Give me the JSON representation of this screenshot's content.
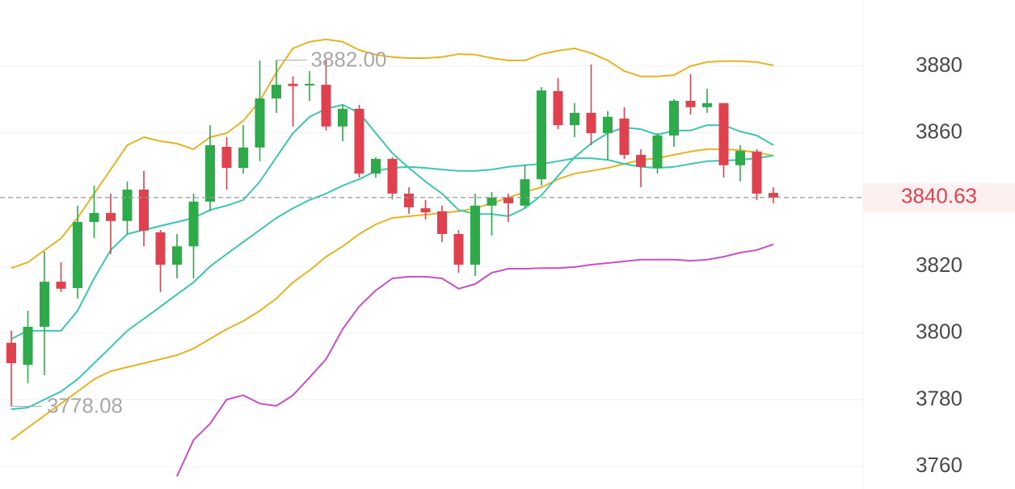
{
  "chart_data": {
    "type": "candlestick",
    "up_color": "#2eaa4a",
    "down_color": "#e0414f",
    "ylim": [
      3753.3,
      3899.8
    ],
    "yticks": [
      3760,
      3780,
      3800,
      3820,
      3860,
      3880
    ],
    "grid": true,
    "open": [
      3797.1,
      3790.5,
      3801.9,
      3815.4,
      3813.5,
      3833.3,
      3836,
      3833.6,
      3843,
      3830.2,
      3820.5,
      3826,
      3839.4,
      3855.8,
      3849.5,
      3855.6,
      3870.3,
      3874.7,
      3874.2,
      3874.4,
      3861.9,
      3867.2,
      3847.8,
      3852.2,
      3841.8,
      3837.4,
      3836.5,
      3829.7,
      3820.5,
      3838.2,
      3840.6,
      3838.2,
      3846.1,
      3872.5,
      3862.3,
      3866,
      3859.9,
      3864.3,
      3853.4,
      3849.5,
      3859.2,
      3869.6,
      3867.7,
      3868.9,
      3850.3,
      3854.4,
      3842
    ],
    "high": [
      3800.7,
      3806.7,
      3824.4,
      3821.2,
      3838.2,
      3844.2,
      3841.8,
      3845.4,
      3848.6,
      3830.9,
      3829.7,
      3841.8,
      3862.3,
      3858.7,
      3862.3,
      3881.7,
      3881.7,
      3876.9,
      3878.5,
      3882,
      3868.4,
      3868.4,
      3852.7,
      3852.7,
      3843.7,
      3839.9,
      3838.2,
      3830.9,
      3841.8,
      3842.3,
      3841.8,
      3850.3,
      3873.7,
      3876.4,
      3868.9,
      3880.5,
      3866.5,
      3867.7,
      3855.1,
      3859.9,
      3870.1,
      3877.6,
      3873.2,
      3868.9,
      3856.3,
      3855.1,
      3843.7
    ],
    "low": [
      3778.08,
      3785,
      3787.4,
      3812.3,
      3810.4,
      3828.5,
      3823.7,
      3829.7,
      3826,
      3812.3,
      3816.4,
      3816.4,
      3836.5,
      3843,
      3847.8,
      3851.5,
      3866,
      3861.9,
      3869.6,
      3860.7,
      3857.5,
      3846.6,
      3846.6,
      3840.1,
      3835.7,
      3834,
      3827.3,
      3818.1,
      3817.1,
      3829.2,
      3833.3,
      3837.4,
      3844.2,
      3861.1,
      3858.7,
      3856.3,
      3851.9,
      3852.2,
      3843.7,
      3847.8,
      3855.8,
      3865.5,
      3866,
      3846.6,
      3845.4,
      3839.9,
      3838.9
    ],
    "close": [
      3791,
      3801.9,
      3815.4,
      3813.3,
      3833.3,
      3836,
      3833.6,
      3843,
      3830.7,
      3820.5,
      3826,
      3839.4,
      3856.3,
      3849.5,
      3855.6,
      3870.3,
      3874.4,
      3874,
      3874.7,
      3861.9,
      3867.2,
      3847.8,
      3852.2,
      3841.8,
      3837.7,
      3836.2,
      3829.7,
      3820.5,
      3838.2,
      3840.6,
      3838.9,
      3846.1,
      3872.7,
      3862.3,
      3866,
      3859.9,
      3864.8,
      3853.4,
      3849.8,
      3859.2,
      3869.6,
      3867.7,
      3868.9,
      3850.3,
      3854.6,
      3841.8,
      3840.63
    ],
    "series": [
      {
        "color": "#e6b422",
        "values": [
          3819.5,
          3821.2,
          3824.8,
          3828.4,
          3834.5,
          3841.8,
          3849,
          3856.3,
          3858.7,
          3857.5,
          3856.8,
          3855.1,
          3858.7,
          3859.9,
          3863.6,
          3869.6,
          3878.1,
          3885.3,
          3887.3,
          3888,
          3887.3,
          3884.8,
          3883.4,
          3882.7,
          3882.4,
          3882.4,
          3882.7,
          3883.6,
          3883.4,
          3882.4,
          3881.7,
          3881.7,
          3883.6,
          3884.6,
          3885.3,
          3883.9,
          3881.7,
          3878.5,
          3876.9,
          3876.9,
          3877.3,
          3880,
          3881.2,
          3881.5,
          3881.5,
          3881.2,
          3880.2
        ]
      },
      {
        "color": "#e6b422",
        "values": [
          3768,
          3771.7,
          3775.3,
          3778.9,
          3782.5,
          3786.2,
          3788.6,
          3789.8,
          3791,
          3792.2,
          3793.4,
          3795.4,
          3798.3,
          3801.2,
          3803.6,
          3806.7,
          3810.4,
          3815.2,
          3818.8,
          3822.9,
          3826,
          3829.7,
          3832.6,
          3834.5,
          3835,
          3835.5,
          3836,
          3836.5,
          3837.4,
          3838.9,
          3840.6,
          3842.3,
          3843.7,
          3846.1,
          3847.8,
          3848.6,
          3849.5,
          3850.7,
          3851.9,
          3852.4,
          3853.4,
          3854.4,
          3855.1,
          3855.1,
          3854.8,
          3854.1,
          3853.2
        ]
      },
      {
        "color": "#c94fc6",
        "values": [
          null,
          null,
          null,
          null,
          null,
          null,
          null,
          null,
          null,
          null,
          3757.1,
          3768,
          3772.9,
          3780.1,
          3781.4,
          3778.9,
          3778.2,
          3781.4,
          3786.7,
          3792.2,
          3801.2,
          3808,
          3812.8,
          3816.4,
          3816.9,
          3816.9,
          3816.4,
          3813.3,
          3814.7,
          3818.1,
          3819.3,
          3819.3,
          3819.5,
          3819.5,
          3819.8,
          3820.5,
          3821,
          3821.5,
          3822,
          3822,
          3822,
          3821.7,
          3822,
          3822.9,
          3824.1,
          3824.9,
          3826.6
        ]
      },
      {
        "color": "#3cc6b2",
        "values": [
          3777.2,
          3777.7,
          3780.1,
          3782.5,
          3786.2,
          3791,
          3795.8,
          3800.7,
          3804.3,
          3807.9,
          3811.6,
          3815.2,
          3820,
          3823.7,
          3827.3,
          3830.9,
          3834.5,
          3837.4,
          3839.9,
          3841.8,
          3844.2,
          3846.1,
          3848.6,
          3849.5,
          3849.8,
          3849.5,
          3849,
          3848.6,
          3848.6,
          3849,
          3849.8,
          3850.3,
          3850.7,
          3851.5,
          3852.4,
          3852.4,
          3851.9,
          3850.7,
          3849.8,
          3849.5,
          3849.8,
          3850.7,
          3851.5,
          3851.7,
          3851.9,
          3852.4,
          3853.2
        ]
      },
      {
        "color": "#3cc6b2",
        "values": [
          3798.3,
          3800.7,
          3800.7,
          3800.7,
          3806.7,
          3816.4,
          3824.9,
          3829.7,
          3830.9,
          3832.1,
          3833.3,
          3834.5,
          3836.9,
          3838.2,
          3839.9,
          3845.4,
          3852.7,
          3859.9,
          3864.8,
          3867.2,
          3868.4,
          3866,
          3859.9,
          3853.9,
          3849.5,
          3845.4,
          3841.8,
          3836.9,
          3835.7,
          3835.7,
          3835,
          3837.4,
          3841.3,
          3847.1,
          3852.7,
          3856.8,
          3859.9,
          3861.6,
          3861.1,
          3859.4,
          3860.7,
          3860.7,
          3862.3,
          3862.3,
          3860.4,
          3859.2,
          3856.3
        ]
      }
    ],
    "max_label": "3882.00",
    "min_label": "3778.08",
    "last_price": 3840.63
  }
}
